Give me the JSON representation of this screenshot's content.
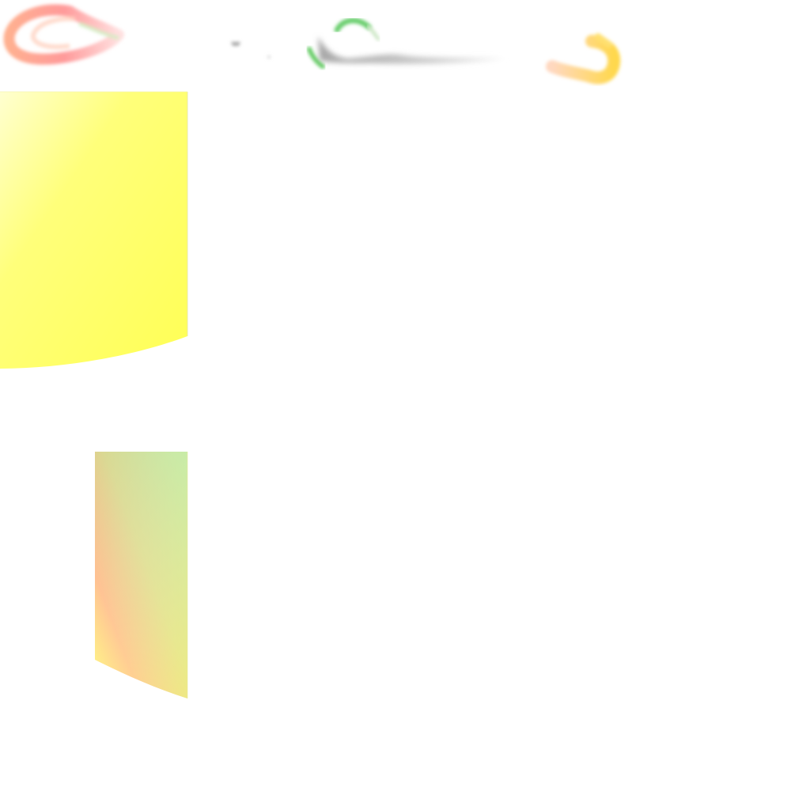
{
  "colors": {
    "background": "#ffffff",
    "yellow_panel": "#ffff66",
    "gradient_panel_top": "#b8e0a8",
    "gradient_panel_bottom": "#ffb080",
    "stroke_red": "#ff8a7a",
    "stroke_green": "#66cc66",
    "stroke_yellow": "#ffd84d",
    "smudge_gray": "#b0b0b0"
  },
  "shapes": [
    "top-left-loop",
    "top-center-arc",
    "top-right-hook",
    "top-smudge",
    "yellow-panel",
    "gradient-panel"
  ]
}
